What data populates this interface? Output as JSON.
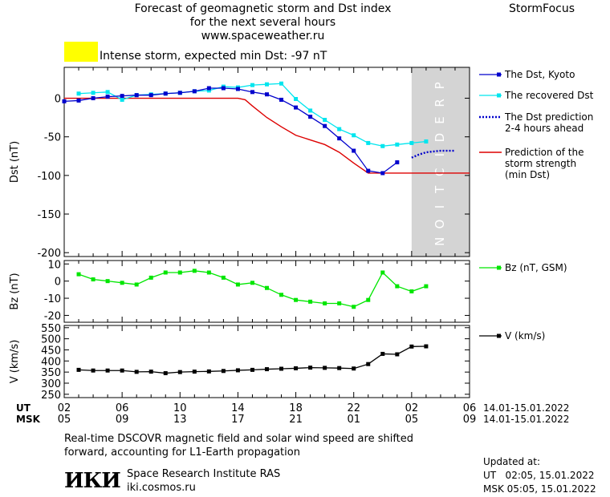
{
  "header": {
    "title_line1": "Forecast of geomagnetic storm and Dst index",
    "title_line2": "for the next several hours",
    "url": "www.spaceweather.ru",
    "brand": "StormFocus"
  },
  "storm_label": {
    "text": "Intense storm, expected min Dst: -97 nT",
    "color": "#ffff00"
  },
  "prediction_band_text": "PREDICTION",
  "time_axis": {
    "ut_label": "UT",
    "msk_label": "MSK",
    "ut_ticks": [
      "02",
      "06",
      "10",
      "14",
      "18",
      "22",
      "02",
      "06"
    ],
    "msk_ticks": [
      "05",
      "09",
      "13",
      "17",
      "21",
      "01",
      "05",
      "09"
    ],
    "ut_range": "14.01-15.01.2022",
    "msk_range": "14.01-15.01.2022"
  },
  "footer": {
    "note_line1": "Real-time DSCOVR magnetic field and solar wind speed are shifted",
    "note_line2": "forward, accounting for L1-Earth propagation",
    "institute": "Space Research Institute RAS",
    "site": "iki.cosmos.ru",
    "logo_text": "ИКИ",
    "updated_label": "Updated at:",
    "updated_ut": "UT   02:05, 15.01.2022",
    "updated_msk": "MSK 05:05, 15.01.2022"
  },
  "colors": {
    "dst_kyoto": "#0000cc",
    "dst_recovered": "#00e5ee",
    "dst_prediction": "#0000cc",
    "storm_strength": "#dd0000",
    "bz": "#00e600",
    "speed": "#000000",
    "prediction_band": "#d4d4d4"
  },
  "chart_data": [
    {
      "type": "line",
      "ylabel": "Dst (nT)",
      "ylim": [
        -205,
        40
      ],
      "yticks": [
        0,
        -50,
        -100,
        -150,
        -200
      ],
      "x_unit": "hours from 02:00 UT 14.01.2022",
      "xlim": [
        0,
        28
      ],
      "prediction_start": 24,
      "series": [
        {
          "name": "The Dst, Kyoto",
          "x": [
            0,
            1,
            2,
            3,
            4,
            5,
            6,
            7,
            8,
            9,
            10,
            11,
            12,
            13,
            14,
            15,
            16,
            17,
            18,
            19,
            20,
            21,
            22,
            23
          ],
          "values": [
            -4,
            -3,
            0,
            2,
            3,
            4,
            4,
            6,
            7,
            9,
            13,
            13,
            12,
            8,
            5,
            -2,
            -12,
            -24,
            -36,
            -52,
            -68,
            -94,
            -97,
            -83
          ]
        },
        {
          "name": "The recovered Dst",
          "x": [
            1,
            2,
            3,
            4,
            5,
            6,
            7,
            8,
            9,
            10,
            11,
            12,
            13,
            14,
            15,
            16,
            17,
            18,
            19,
            20,
            21,
            22,
            23,
            24,
            25
          ],
          "values": [
            6,
            7,
            8,
            -2,
            4,
            5,
            6,
            7,
            9,
            10,
            15,
            14,
            17,
            18,
            19,
            -1,
            -16,
            -28,
            -40,
            -48,
            -58,
            -62,
            -60,
            -58,
            -56
          ]
        },
        {
          "name": "The Dst prediction 2-4 hours ahead",
          "x": [
            24,
            24.5,
            25,
            26,
            27
          ],
          "values": [
            -77,
            -73,
            -70,
            -68,
            -68
          ]
        },
        {
          "name": "Prediction of the storm strength (min Dst)",
          "x": [
            0,
            2,
            4,
            6,
            8,
            10,
            12,
            12.5,
            13,
            14,
            15,
            16,
            17,
            18,
            19,
            20,
            21,
            28
          ],
          "values": [
            0,
            0,
            0,
            0,
            0,
            0,
            0,
            -2,
            -10,
            -25,
            -37,
            -48,
            -54,
            -60,
            -70,
            -84,
            -97,
            -97
          ]
        }
      ]
    },
    {
      "type": "line",
      "ylabel": "Bz (nT)",
      "ylim": [
        -24,
        12
      ],
      "yticks": [
        10,
        0,
        -10,
        -20
      ],
      "series": [
        {
          "name": "Bz (nT, GSM)",
          "x": [
            1,
            2,
            3,
            4,
            5,
            6,
            7,
            8,
            9,
            10,
            11,
            12,
            13,
            14,
            15,
            16,
            17,
            18,
            19,
            20,
            21,
            22,
            23,
            24,
            25
          ],
          "values": [
            4,
            1,
            0,
            -1,
            -2,
            2,
            5,
            5,
            6,
            5,
            2,
            -2,
            -1,
            -4,
            -8,
            -11,
            -12,
            -13,
            -13,
            -15,
            -11,
            5,
            -3,
            -6,
            -3
          ]
        }
      ]
    },
    {
      "type": "line",
      "ylabel": "V (km/s)",
      "ylim": [
        235,
        560
      ],
      "yticks": [
        550,
        500,
        450,
        400,
        350,
        300,
        250
      ],
      "ytick_labels": [
        "550",
        "500",
        "450",
        "400",
        "350",
        "300",
        "250"
      ],
      "series": [
        {
          "name": "V (km/s)",
          "x": [
            1,
            2,
            3,
            4,
            5,
            6,
            7,
            8,
            9,
            10,
            11,
            12,
            13,
            14,
            15,
            16,
            17,
            18,
            19,
            20,
            21,
            22,
            23,
            24,
            25
          ],
          "values": [
            360,
            357,
            357,
            357,
            351,
            352,
            345,
            350,
            352,
            353,
            355,
            358,
            360,
            363,
            365,
            367,
            370,
            369,
            368,
            366,
            386,
            432,
            430,
            465,
            466
          ]
        }
      ]
    }
  ]
}
